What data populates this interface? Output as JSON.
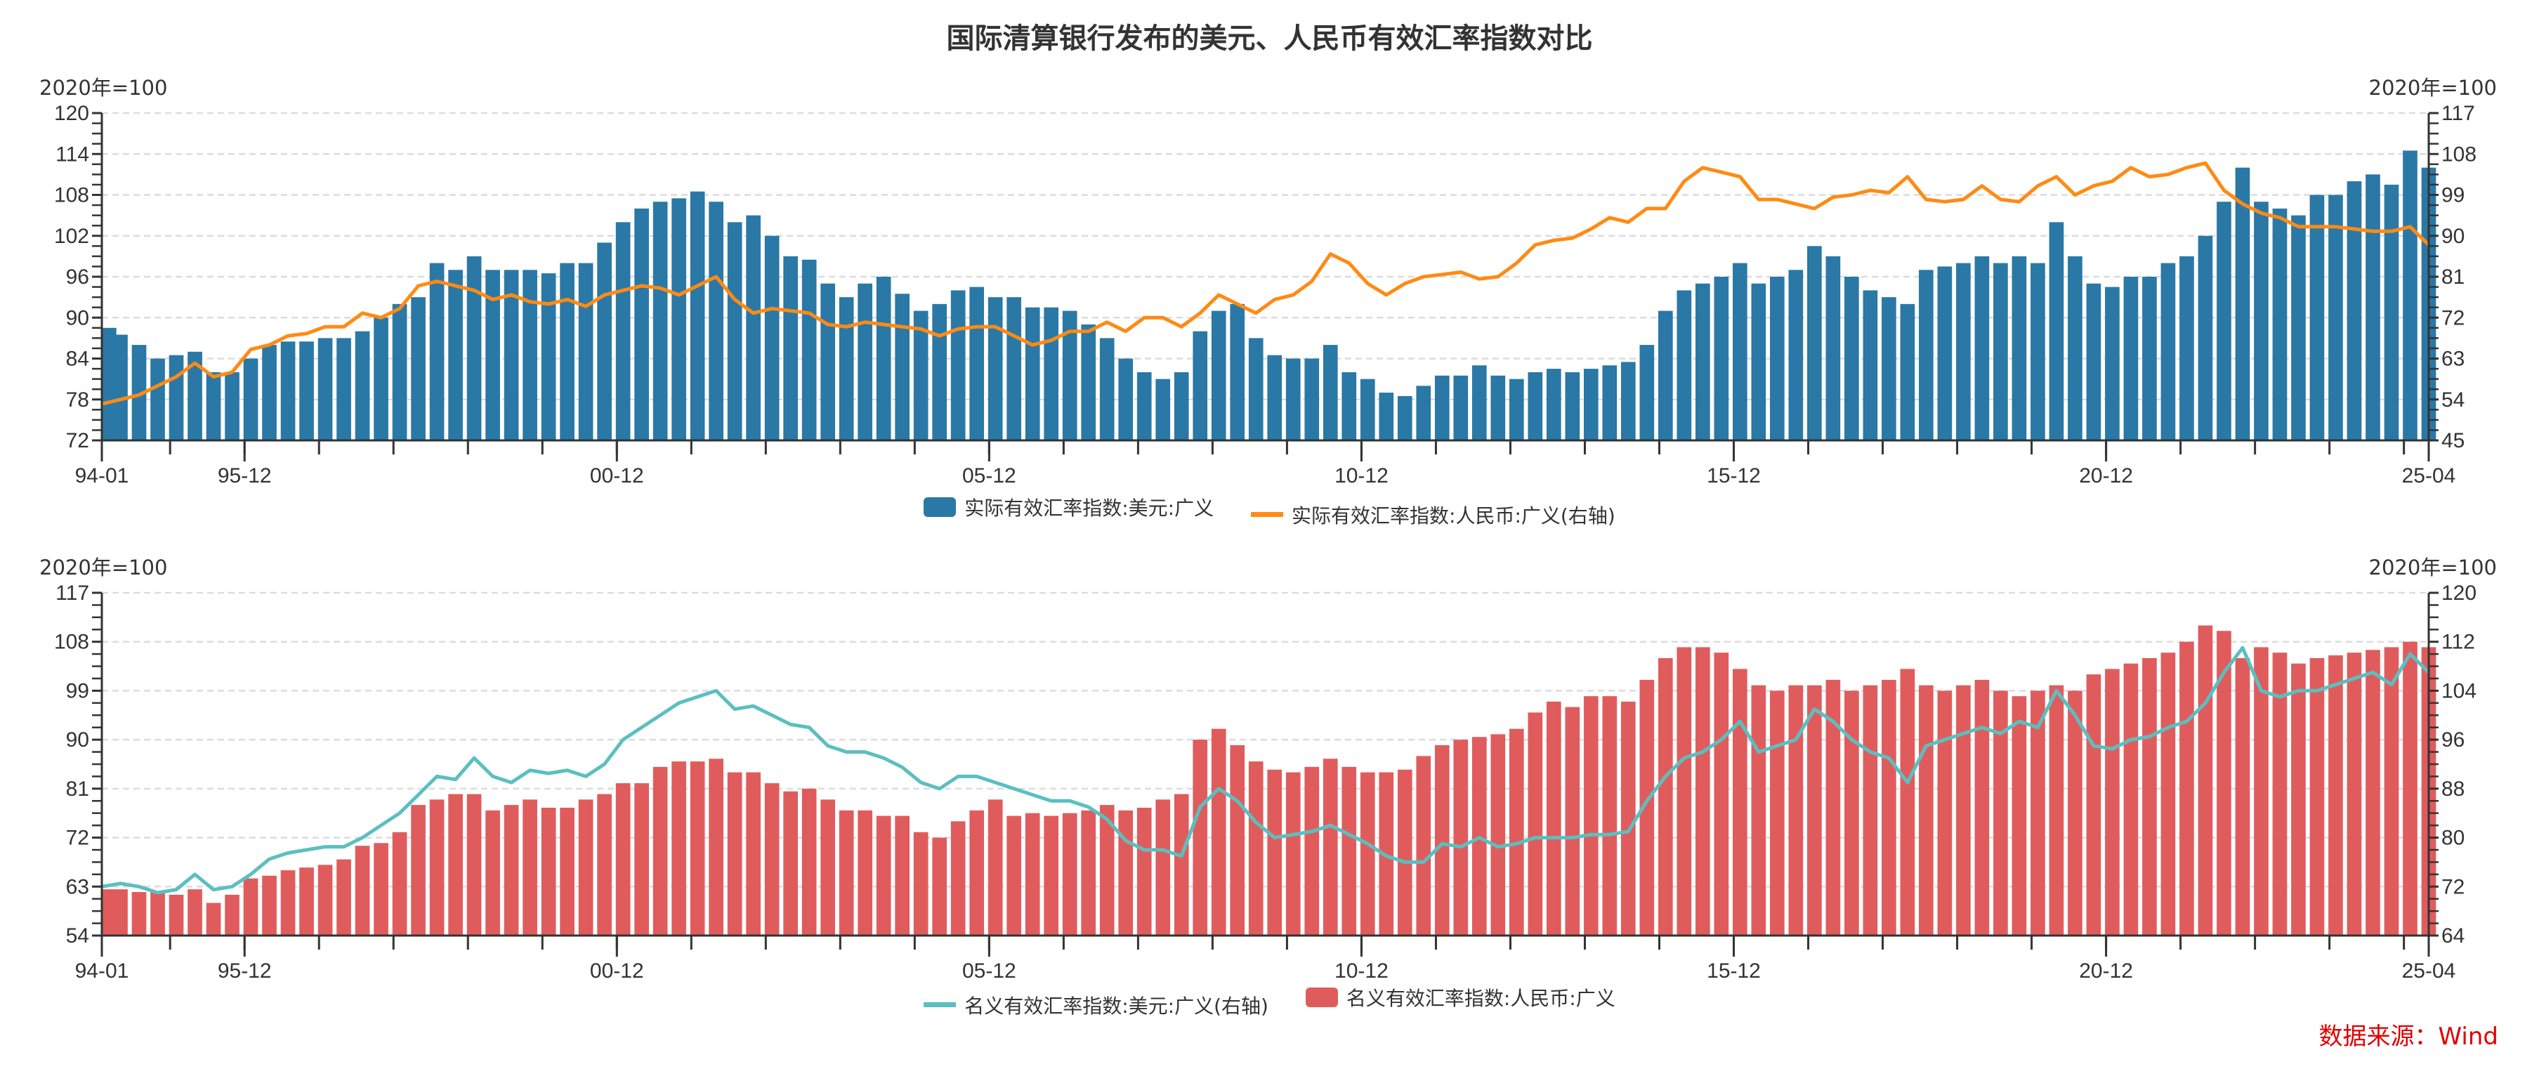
{
  "title": "国际清算银行发布的美元、人民币有效汇率指数对比",
  "source": "数据来源：Wind",
  "colors": {
    "usd_real": "#2a78a6",
    "cny_real": "#ff8a14",
    "usd_nominal": "#5bbfc0",
    "cny_nominal": "#e05c5c"
  },
  "chart_data": [
    {
      "type": "bar+line",
      "left_unit": "2020年=100",
      "right_unit": "2020年=100",
      "x_tick_labels": [
        "94-01",
        "95-12",
        "00-12",
        "05-12",
        "10-12",
        "15-12",
        "20-12",
        "25-04"
      ],
      "x_range": [
        "1994-01",
        "2025-04"
      ],
      "sampling": "quarterly (Jan/Apr/Jul/Oct)",
      "left_ylim": [
        72,
        120
      ],
      "left_ticks": [
        72,
        78,
        84,
        90,
        96,
        102,
        108,
        114,
        120
      ],
      "right_ylim": [
        45,
        117
      ],
      "right_ticks": [
        45,
        54,
        63,
        72,
        81,
        90,
        99,
        108,
        117
      ],
      "grid": true,
      "legend": "bottom",
      "series": [
        {
          "name": "实际有效汇率指数:美元:广义",
          "kind": "bar",
          "axis": "left",
          "values": [
            88.5,
            87.5,
            86,
            84,
            84.5,
            85,
            82,
            82,
            84,
            86,
            86.5,
            86.5,
            87,
            87,
            88,
            90,
            92,
            93,
            98,
            97,
            99,
            97,
            97,
            97,
            96.5,
            98,
            98,
            101,
            104,
            106,
            107,
            107.5,
            108.5,
            107,
            104,
            105,
            102,
            99,
            98.5,
            95,
            93,
            95,
            96,
            93.5,
            91,
            92,
            94,
            94.5,
            93,
            93,
            91.5,
            91.5,
            91,
            89,
            87,
            84,
            82,
            81,
            82,
            88,
            91,
            92,
            87,
            84.5,
            84,
            84,
            86,
            82,
            81,
            79,
            78.5,
            80,
            81.5,
            81.5,
            83,
            81.5,
            81,
            82,
            82.5,
            82,
            82.5,
            83,
            83.5,
            86,
            91,
            94,
            95,
            96,
            98,
            95,
            96,
            97,
            100.5,
            99,
            96,
            94,
            93,
            92,
            97,
            97.5,
            98,
            99,
            98,
            99,
            98,
            104,
            99,
            95,
            94.5,
            96,
            96,
            98,
            99,
            102,
            107,
            112,
            107,
            106,
            105,
            108,
            108,
            110,
            111,
            109.5,
            114.5,
            112
          ]
        },
        {
          "name": "实际有效汇率指数:人民币:广义(右轴)",
          "kind": "line",
          "axis": "right",
          "values": [
            53,
            54,
            55,
            57,
            59,
            62,
            59,
            60,
            65,
            66,
            68,
            68.5,
            70,
            70,
            73,
            72,
            74,
            79,
            80,
            79,
            78,
            76,
            77,
            75.5,
            75,
            76,
            74.5,
            77,
            78,
            79,
            78.5,
            77,
            79,
            81,
            76,
            73,
            74,
            73.5,
            73,
            70.5,
            70,
            71,
            70.5,
            70,
            69.5,
            68,
            69.5,
            70,
            70,
            68,
            66,
            67,
            69,
            69,
            71,
            69,
            72,
            72,
            70,
            73,
            77,
            75,
            73,
            76,
            77,
            80,
            86,
            84,
            79.5,
            77,
            79.5,
            81,
            81.5,
            82,
            80.5,
            81,
            84,
            88,
            89,
            89.5,
            91.5,
            94,
            93,
            96,
            96,
            102,
            105,
            104,
            103,
            98,
            98,
            97,
            96,
            98.5,
            99,
            100,
            99.5,
            103,
            98,
            97.5,
            98,
            101,
            98,
            97.5,
            101,
            103,
            99,
            101,
            102,
            105,
            103,
            103.5,
            105,
            106,
            100,
            97,
            95,
            94,
            92,
            92,
            92,
            91.5,
            91,
            91,
            92,
            88
          ]
        }
      ]
    },
    {
      "type": "bar+line",
      "left_unit": "2020年=100",
      "right_unit": "2020年=100",
      "x_tick_labels": [
        "94-01",
        "95-12",
        "00-12",
        "05-12",
        "10-12",
        "15-12",
        "20-12",
        "25-04"
      ],
      "x_range": [
        "1994-01",
        "2025-04"
      ],
      "sampling": "quarterly (Jan/Apr/Jul/Oct)",
      "left_ylim": [
        54,
        117
      ],
      "left_ticks": [
        54,
        63,
        72,
        81,
        90,
        99,
        108,
        117
      ],
      "right_ylim": [
        64,
        120
      ],
      "right_ticks": [
        64,
        72,
        80,
        88,
        96,
        104,
        112,
        120
      ],
      "grid": true,
      "legend": "bottom",
      "series": [
        {
          "name": "名义有效汇率指数:美元:广义(右轴)",
          "kind": "line",
          "axis": "right",
          "values": [
            72,
            72.5,
            72,
            71,
            71.5,
            74,
            71.5,
            72,
            74,
            76.5,
            77.5,
            78,
            78.5,
            78.5,
            80,
            82,
            84,
            87,
            90,
            89.5,
            93,
            90,
            89,
            91,
            90.5,
            91,
            90,
            92,
            96,
            98,
            100,
            102,
            103,
            104,
            101,
            101.5,
            100,
            98.5,
            98,
            95,
            94,
            94,
            93,
            91.5,
            89,
            88,
            90,
            90,
            89,
            88,
            87,
            86,
            86,
            85,
            83,
            79.5,
            78,
            78,
            77,
            85,
            88,
            86,
            82.5,
            80,
            80.5,
            81,
            82,
            80.5,
            79,
            77,
            76,
            76,
            79,
            78.5,
            80,
            78.5,
            79,
            80,
            80,
            80,
            80.5,
            80.5,
            81,
            86,
            90,
            93,
            94,
            96,
            99,
            94,
            95,
            96,
            101,
            99,
            96,
            94,
            93,
            89,
            95,
            96,
            97,
            98,
            97,
            99,
            98,
            104,
            100,
            95,
            94.5,
            96,
            96.5,
            98,
            99,
            102,
            107,
            111,
            104,
            103,
            104,
            104,
            105,
            106,
            107,
            105,
            110,
            107
          ]
        },
        {
          "name": "名义有效汇率指数:人民币:广义",
          "kind": "bar",
          "axis": "left",
          "values": [
            62.5,
            62.5,
            62,
            62,
            61.5,
            62.5,
            60,
            61.5,
            64.5,
            65,
            66,
            66.5,
            67,
            68,
            70.5,
            71,
            73,
            78,
            79,
            80,
            80,
            77,
            78,
            79,
            77.5,
            77.5,
            79,
            80,
            82,
            82,
            85,
            86,
            86,
            86.5,
            84,
            84,
            82,
            80.5,
            81,
            79,
            77,
            77,
            76,
            76,
            73,
            72,
            75,
            77,
            79,
            76,
            76.5,
            76,
            76.5,
            77,
            78,
            77,
            77.5,
            79,
            80,
            90,
            92,
            89,
            86,
            84.5,
            84,
            85,
            86.5,
            85,
            84,
            84,
            84.5,
            87,
            89,
            90,
            90.5,
            91,
            92,
            95,
            97,
            96,
            98,
            98,
            97,
            101,
            105,
            107,
            107,
            106,
            103,
            100,
            99,
            100,
            100,
            101,
            99,
            100,
            101,
            103,
            100,
            99,
            100,
            101,
            99,
            98,
            99,
            100,
            99,
            102,
            103,
            104,
            105,
            106,
            108,
            111,
            110,
            105,
            107,
            106,
            104,
            105,
            105.5,
            106,
            106.5,
            107,
            108,
            107
          ]
        }
      ]
    }
  ]
}
